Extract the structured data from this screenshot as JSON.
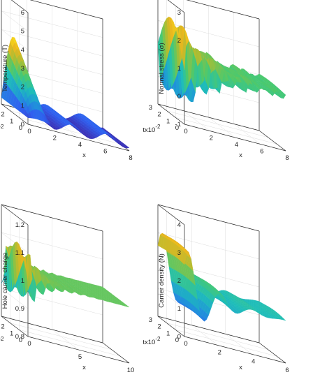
{
  "chart_data": [
    {
      "type": "surface",
      "zlabel": "Temperature (T)",
      "xlabel": "x",
      "ylabel": "tx10",
      "ylabel_exp": "-2",
      "xlim": [
        0,
        8
      ],
      "ylim": [
        0,
        3
      ],
      "zlim": [
        0,
        6
      ],
      "xticks": [
        "0",
        "2",
        "4",
        "6",
        "8"
      ],
      "yticks": [
        "0",
        "1",
        "2",
        "3"
      ],
      "zticks": [
        "0",
        "1",
        "2",
        "3",
        "4",
        "5",
        "6"
      ],
      "z_range_shown": [
        0,
        3.8
      ],
      "grid": true,
      "colormap": [
        "#3e26a8",
        "#2f60f0",
        "#1f97d8",
        "#1fbeb8",
        "#4ac96f",
        "#a5be36",
        "#eab61e",
        "#f9e21a"
      ]
    },
    {
      "type": "surface",
      "zlabel": "Normal stress (σ)",
      "xlabel": "x",
      "ylabel": "tx10",
      "ylabel_exp": "-2",
      "xlim": [
        0,
        8
      ],
      "ylim": [
        0,
        3
      ],
      "zlim": [
        -1,
        3
      ],
      "xticks": [
        "0",
        "2",
        "4",
        "6",
        "8"
      ],
      "yticks": [
        "0",
        "1",
        "2",
        "3"
      ],
      "zticks": [
        "-1",
        "0",
        "1",
        "2",
        "3"
      ],
      "z_range_shown": [
        -1,
        2.5
      ],
      "grid": true,
      "colormap": [
        "#3e26a8",
        "#2f60f0",
        "#1f97d8",
        "#1fbeb8",
        "#4ac96f",
        "#a5be36",
        "#eab61e",
        "#f9e21a"
      ]
    },
    {
      "type": "surface",
      "zlabel": "Hole carrier charge",
      "xlabel": "x",
      "ylabel": "tx10",
      "ylabel_exp": "-2",
      "xlim": [
        0,
        10
      ],
      "ylim": [
        0,
        3
      ],
      "zlim": [
        0.8,
        1.2
      ],
      "xticks": [
        "0",
        "5",
        "10"
      ],
      "yticks": [
        "0",
        "1",
        "2",
        "3"
      ],
      "zticks": [
        "0.8",
        "0.9",
        "1",
        "1.1",
        "1.2"
      ],
      "z_range_shown": [
        0.81,
        1.12
      ],
      "grid": true,
      "colormap": [
        "#3e26a8",
        "#2f60f0",
        "#1f97d8",
        "#1fbeb8",
        "#4ac96f",
        "#a5be36",
        "#eab61e",
        "#f9e21a"
      ]
    },
    {
      "type": "surface",
      "zlabel": "Carrier density (N)",
      "xlabel": "x",
      "ylabel": "tx10",
      "ylabel_exp": "-2",
      "xlim": [
        0,
        6
      ],
      "ylim": [
        0,
        3
      ],
      "zlim": [
        0,
        4
      ],
      "xticks": [
        "0",
        "2",
        "4",
        "6"
      ],
      "yticks": [
        "0",
        "1",
        "2",
        "3"
      ],
      "zticks": [
        "0",
        "1",
        "2",
        "3",
        "4"
      ],
      "z_range_shown": [
        0,
        3.5
      ],
      "grid": true,
      "colormap": [
        "#3e26a8",
        "#2f60f0",
        "#1f97d8",
        "#1fbeb8",
        "#4ac96f",
        "#a5be36",
        "#eab61e",
        "#f9e21a"
      ]
    }
  ]
}
